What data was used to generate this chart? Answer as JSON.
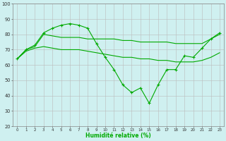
{
  "x": [
    0,
    1,
    2,
    3,
    4,
    5,
    6,
    7,
    8,
    9,
    10,
    11,
    12,
    13,
    14,
    15,
    16,
    17,
    18,
    19,
    20,
    21,
    22,
    23
  ],
  "line1": [
    64,
    70,
    73,
    81,
    84,
    86,
    87,
    86,
    84,
    74,
    65,
    57,
    47,
    42,
    45,
    35,
    47,
    57,
    57,
    66,
    65,
    71,
    77,
    81
  ],
  "line2": [
    64,
    70,
    72,
    80,
    79,
    78,
    78,
    78,
    77,
    77,
    77,
    77,
    76,
    76,
    75,
    75,
    75,
    75,
    74,
    74,
    74,
    74,
    77,
    80
  ],
  "line3": [
    64,
    69,
    71,
    72,
    71,
    70,
    70,
    70,
    69,
    68,
    67,
    66,
    65,
    65,
    64,
    64,
    63,
    63,
    62,
    62,
    62,
    63,
    65,
    68
  ],
  "bg_color": "#cff0f0",
  "grid_color": "#bbbbbb",
  "line_color": "#00aa00",
  "xlabel": "Humidité relative (%)",
  "ylim": [
    20,
    100
  ],
  "yticks": [
    20,
    30,
    40,
    50,
    60,
    70,
    80,
    90,
    100
  ],
  "xlim_min": -0.5,
  "xlim_max": 23.5,
  "xticks": [
    0,
    1,
    2,
    3,
    4,
    5,
    6,
    7,
    8,
    9,
    10,
    11,
    12,
    13,
    14,
    15,
    16,
    17,
    18,
    19,
    20,
    21,
    22,
    23
  ]
}
